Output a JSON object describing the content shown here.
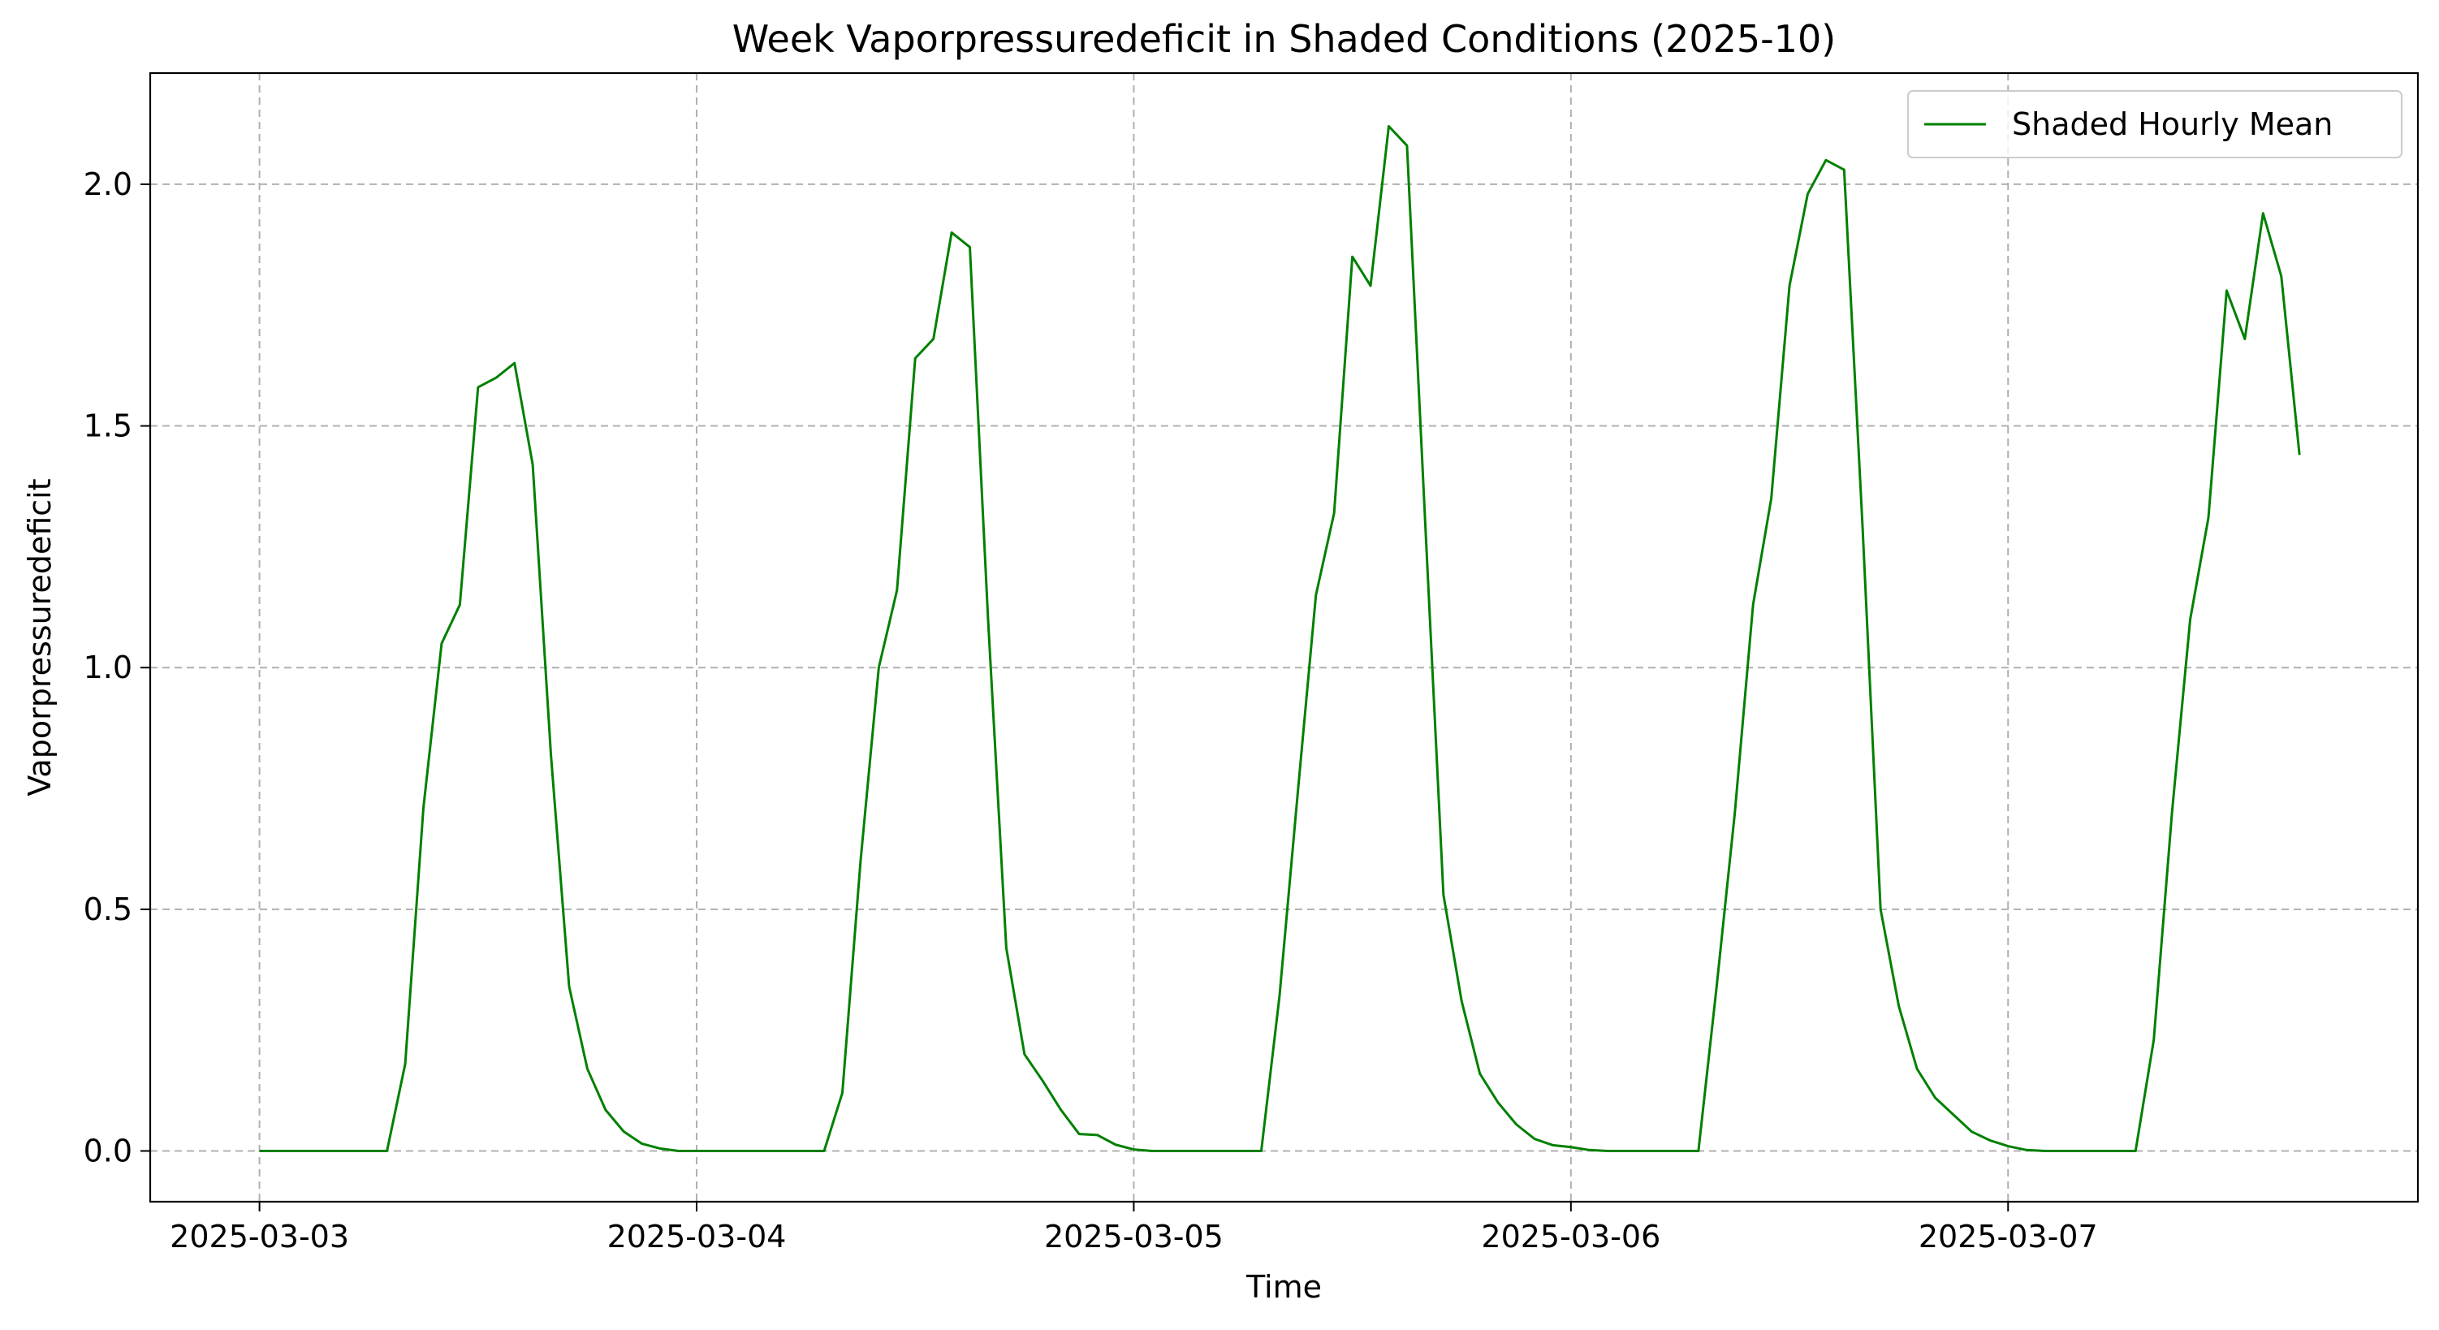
{
  "chart_data": {
    "type": "line",
    "title": "Week Vaporpressuredeficit in Shaded Conditions (2025-10)",
    "xlabel": "Time",
    "ylabel": "Vaporpressuredeficit",
    "x_ticks": [
      "2025-03-03",
      "2025-03-04",
      "2025-03-05",
      "2025-03-06",
      "2025-03-07"
    ],
    "y_ticks": [
      "0.0",
      "0.5",
      "1.0",
      "1.5",
      "2.0"
    ],
    "xlim": [
      "2025-03-02 18:00",
      "2025-03-07 22:30"
    ],
    "ylim": [
      -0.105,
      2.23
    ],
    "grid": true,
    "legend_position": "top-right",
    "colors": {
      "series": "#008000",
      "grid": "#b0b0b0"
    },
    "series": [
      {
        "name": "Shaded Hourly Mean",
        "points": [
          [
            "2025-03-03 00:00",
            0.0
          ],
          [
            "2025-03-03 01:00",
            0.0
          ],
          [
            "2025-03-03 02:00",
            0.0
          ],
          [
            "2025-03-03 03:00",
            0.0
          ],
          [
            "2025-03-03 04:00",
            0.0
          ],
          [
            "2025-03-03 05:00",
            0.0
          ],
          [
            "2025-03-03 06:00",
            0.0
          ],
          [
            "2025-03-03 07:00",
            0.0
          ],
          [
            "2025-03-03 08:00",
            0.18
          ],
          [
            "2025-03-03 09:00",
            0.71
          ],
          [
            "2025-03-03 10:00",
            1.05
          ],
          [
            "2025-03-03 11:00",
            1.13
          ],
          [
            "2025-03-03 12:00",
            1.58
          ],
          [
            "2025-03-03 13:00",
            1.6
          ],
          [
            "2025-03-03 14:00",
            1.63
          ],
          [
            "2025-03-03 15:00",
            1.42
          ],
          [
            "2025-03-03 16:00",
            0.82
          ],
          [
            "2025-03-03 17:00",
            0.34
          ],
          [
            "2025-03-03 18:00",
            0.17
          ],
          [
            "2025-03-03 19:00",
            0.085
          ],
          [
            "2025-03-03 20:00",
            0.04
          ],
          [
            "2025-03-03 21:00",
            0.015
          ],
          [
            "2025-03-03 22:00",
            0.005
          ],
          [
            "2025-03-03 23:00",
            0.0
          ],
          [
            "2025-03-04 00:00",
            0.0
          ],
          [
            "2025-03-04 01:00",
            0.0
          ],
          [
            "2025-03-04 02:00",
            0.0
          ],
          [
            "2025-03-04 03:00",
            0.0
          ],
          [
            "2025-03-04 04:00",
            0.0
          ],
          [
            "2025-03-04 05:00",
            0.0
          ],
          [
            "2025-03-04 06:00",
            0.0
          ],
          [
            "2025-03-04 07:00",
            0.0
          ],
          [
            "2025-03-04 08:00",
            0.12
          ],
          [
            "2025-03-04 09:00",
            0.6
          ],
          [
            "2025-03-04 10:00",
            1.0
          ],
          [
            "2025-03-04 11:00",
            1.16
          ],
          [
            "2025-03-04 12:00",
            1.64
          ],
          [
            "2025-03-04 13:00",
            1.68
          ],
          [
            "2025-03-04 14:00",
            1.9
          ],
          [
            "2025-03-04 15:00",
            1.87
          ],
          [
            "2025-03-04 16:00",
            1.1
          ],
          [
            "2025-03-04 17:00",
            0.42
          ],
          [
            "2025-03-04 18:00",
            0.2
          ],
          [
            "2025-03-04 19:00",
            0.145
          ],
          [
            "2025-03-04 20:00",
            0.085
          ],
          [
            "2025-03-04 21:00",
            0.035
          ],
          [
            "2025-03-04 22:00",
            0.033
          ],
          [
            "2025-03-04 23:00",
            0.013
          ],
          [
            "2025-03-05 00:00",
            0.003
          ],
          [
            "2025-03-05 01:00",
            0.0
          ],
          [
            "2025-03-05 02:00",
            0.0
          ],
          [
            "2025-03-05 03:00",
            0.0
          ],
          [
            "2025-03-05 04:00",
            0.0
          ],
          [
            "2025-03-05 05:00",
            0.0
          ],
          [
            "2025-03-05 06:00",
            0.0
          ],
          [
            "2025-03-05 07:00",
            0.0
          ],
          [
            "2025-03-05 08:00",
            0.32
          ],
          [
            "2025-03-05 09:00",
            0.74
          ],
          [
            "2025-03-05 10:00",
            1.15
          ],
          [
            "2025-03-05 11:00",
            1.32
          ],
          [
            "2025-03-05 12:00",
            1.85
          ],
          [
            "2025-03-05 13:00",
            1.79
          ],
          [
            "2025-03-05 14:00",
            2.12
          ],
          [
            "2025-03-05 15:00",
            2.08
          ],
          [
            "2025-03-05 16:00",
            1.3
          ],
          [
            "2025-03-05 17:00",
            0.53
          ],
          [
            "2025-03-05 18:00",
            0.31
          ],
          [
            "2025-03-05 19:00",
            0.16
          ],
          [
            "2025-03-05 20:00",
            0.1
          ],
          [
            "2025-03-05 21:00",
            0.055
          ],
          [
            "2025-03-05 22:00",
            0.025
          ],
          [
            "2025-03-05 23:00",
            0.012
          ],
          [
            "2025-03-06 00:00",
            0.008
          ],
          [
            "2025-03-06 01:00",
            0.002
          ],
          [
            "2025-03-06 02:00",
            0.0
          ],
          [
            "2025-03-06 03:00",
            0.0
          ],
          [
            "2025-03-06 04:00",
            0.0
          ],
          [
            "2025-03-06 05:00",
            0.0
          ],
          [
            "2025-03-06 06:00",
            0.0
          ],
          [
            "2025-03-06 07:00",
            0.0
          ],
          [
            "2025-03-06 08:00",
            0.34
          ],
          [
            "2025-03-06 09:00",
            0.7
          ],
          [
            "2025-03-06 10:00",
            1.13
          ],
          [
            "2025-03-06 11:00",
            1.35
          ],
          [
            "2025-03-06 12:00",
            1.79
          ],
          [
            "2025-03-06 13:00",
            1.98
          ],
          [
            "2025-03-06 14:00",
            2.05
          ],
          [
            "2025-03-06 15:00",
            2.03
          ],
          [
            "2025-03-06 16:00",
            1.3
          ],
          [
            "2025-03-06 17:00",
            0.5
          ],
          [
            "2025-03-06 18:00",
            0.3
          ],
          [
            "2025-03-06 19:00",
            0.17
          ],
          [
            "2025-03-06 20:00",
            0.11
          ],
          [
            "2025-03-06 21:00",
            0.075
          ],
          [
            "2025-03-06 22:00",
            0.04
          ],
          [
            "2025-03-06 23:00",
            0.022
          ],
          [
            "2025-03-07 00:00",
            0.01
          ],
          [
            "2025-03-07 01:00",
            0.002
          ],
          [
            "2025-03-07 02:00",
            0.0
          ],
          [
            "2025-03-07 03:00",
            0.0
          ],
          [
            "2025-03-07 04:00",
            0.0
          ],
          [
            "2025-03-07 05:00",
            0.0
          ],
          [
            "2025-03-07 06:00",
            0.0
          ],
          [
            "2025-03-07 07:00",
            0.0
          ],
          [
            "2025-03-07 08:00",
            0.23
          ],
          [
            "2025-03-07 09:00",
            0.7
          ],
          [
            "2025-03-07 10:00",
            1.1
          ],
          [
            "2025-03-07 11:00",
            1.31
          ],
          [
            "2025-03-07 12:00",
            1.78
          ],
          [
            "2025-03-07 13:00",
            1.68
          ],
          [
            "2025-03-07 14:00",
            1.94
          ],
          [
            "2025-03-07 15:00",
            1.81
          ],
          [
            "2025-03-07 16:00",
            1.44
          ]
        ]
      }
    ]
  }
}
